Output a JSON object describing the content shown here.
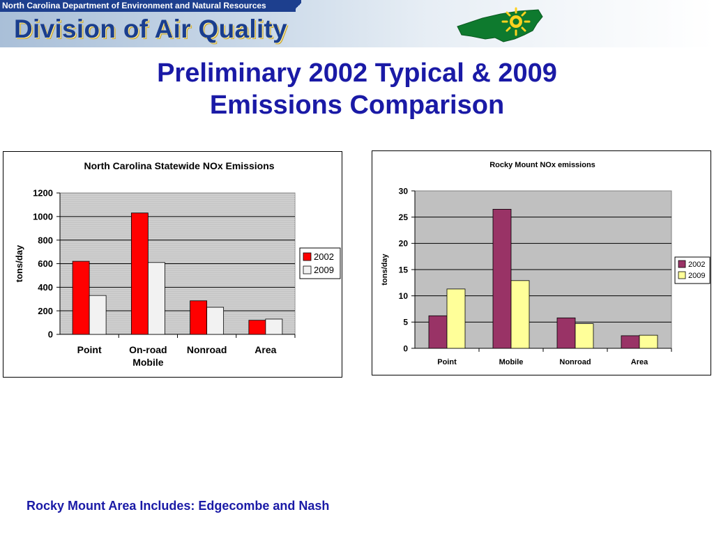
{
  "banner": {
    "department": "North Carolina Department of Environment and Natural Resources",
    "division": "Division of Air Quality"
  },
  "page": {
    "title_line1": "Preliminary 2002 Typical & 2009",
    "title_line2": "Emissions Comparison",
    "footer": "Rocky Mount Area Includes: Edgecombe and Nash"
  },
  "chart_data": [
    {
      "type": "bar",
      "title": "North Carolina Statewide NOx Emissions",
      "xlabel": "",
      "ylabel": "tons/day",
      "categories": [
        [
          "Point"
        ],
        [
          "On-road",
          "Mobile"
        ],
        [
          "Nonroad"
        ],
        [
          "Area"
        ]
      ],
      "yticks": [
        "0",
        "200",
        "400",
        "600",
        "800",
        "1000",
        "1200"
      ],
      "ylim": [
        0,
        1200
      ],
      "series": [
        {
          "name": "2002",
          "values": [
            620,
            1030,
            285,
            120
          ],
          "color": "#ff0000"
        },
        {
          "name": "2009",
          "values": [
            330,
            610,
            230,
            130
          ],
          "color": "#f2f2f2"
        }
      ],
      "grid": true,
      "plot_background": "#c4c4c4",
      "legend": "right"
    },
    {
      "type": "bar",
      "title": "Rocky Mount NOx emissions",
      "xlabel": "",
      "ylabel": "tons/day",
      "categories": [
        [
          "Point"
        ],
        [
          "Mobile"
        ],
        [
          "Nonroad"
        ],
        [
          "Area"
        ]
      ],
      "yticks": [
        "0",
        "5",
        "10",
        "15",
        "20",
        "25",
        "30"
      ],
      "ylim": [
        0,
        30
      ],
      "series": [
        {
          "name": "2002",
          "values": [
            6.2,
            26.5,
            5.8,
            2.4
          ],
          "color": "#993366"
        },
        {
          "name": "2009",
          "values": [
            11.3,
            12.9,
            4.7,
            2.5
          ],
          "color": "#ffff99"
        }
      ],
      "grid": true,
      "plot_background": "#c0c0c0",
      "legend": "right"
    }
  ]
}
